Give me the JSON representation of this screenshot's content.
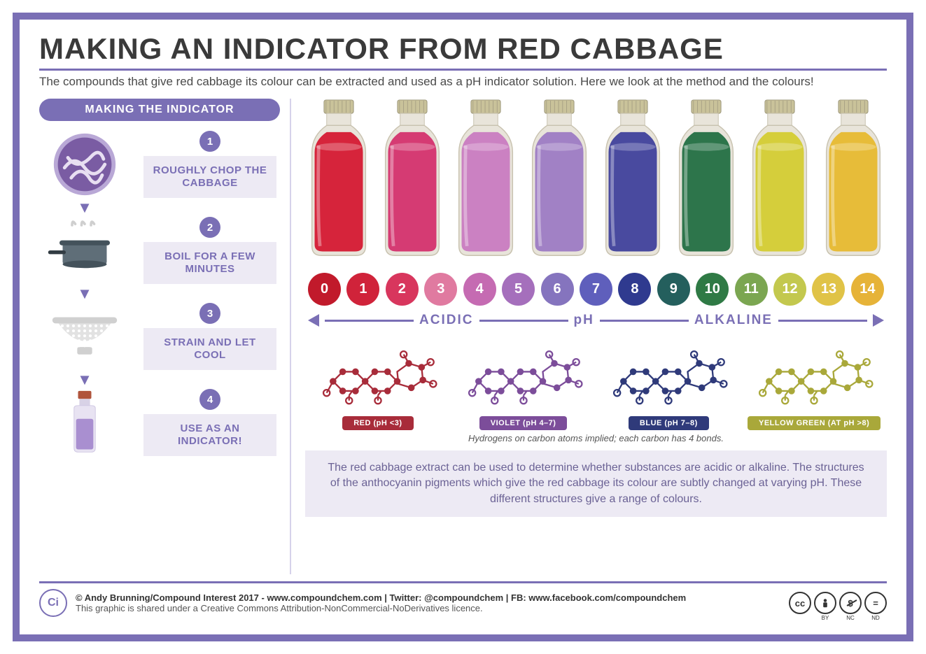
{
  "colors": {
    "accent": "#7a6fb5",
    "accent_light": "#edeaf4",
    "title_text": "#3a3a3a",
    "body_text": "#4a4a4a"
  },
  "title": "MAKING AN INDICATOR FROM RED CABBAGE",
  "subtitle": "The compounds that give red cabbage its colour can be extracted and used as a pH indicator solution. Here we look at the method and the colours!",
  "section_header": "MAKING THE INDICATOR",
  "steps": [
    {
      "num": "1",
      "label": "ROUGHLY CHOP THE CABBAGE",
      "icon": "cabbage"
    },
    {
      "num": "2",
      "label": "BOIL FOR A FEW MINUTES",
      "icon": "pot"
    },
    {
      "num": "3",
      "label": "STRAIN AND LET COOL",
      "icon": "strainer"
    },
    {
      "num": "4",
      "label": "USE AS AN INDICATOR!",
      "icon": "bottle"
    }
  ],
  "bottles": [
    {
      "liquid": "#d4132e"
    },
    {
      "liquid": "#d32d6a"
    },
    {
      "liquid": "#c878c0"
    },
    {
      "liquid": "#9a78c3"
    },
    {
      "liquid": "#3b3d9a"
    },
    {
      "liquid": "#1c6b3f"
    },
    {
      "liquid": "#d2cc2e"
    },
    {
      "liquid": "#e6b92b"
    }
  ],
  "bottle_cap_color": "#c9c29a",
  "bottle_glass_color": "#e8e4da",
  "ph_scale": [
    {
      "v": "0",
      "c": "#c11a2b"
    },
    {
      "v": "1",
      "c": "#d0233a"
    },
    {
      "v": "2",
      "c": "#d8365d"
    },
    {
      "v": "3",
      "c": "#e07aa0"
    },
    {
      "v": "4",
      "c": "#c56bb2"
    },
    {
      "v": "5",
      "c": "#a56fbc"
    },
    {
      "v": "6",
      "c": "#8574be"
    },
    {
      "v": "7",
      "c": "#5f5fbc"
    },
    {
      "v": "8",
      "c": "#2f3a8f"
    },
    {
      "v": "9",
      "c": "#245f5d"
    },
    {
      "v": "10",
      "c": "#2f7a45"
    },
    {
      "v": "11",
      "c": "#7ba651"
    },
    {
      "v": "12",
      "c": "#c3c84e"
    },
    {
      "v": "13",
      "c": "#e0c347"
    },
    {
      "v": "14",
      "c": "#e6b338"
    }
  ],
  "scale_labels": {
    "left": "ACIDIC",
    "mid": "pH",
    "right": "ALKALINE"
  },
  "molecules": [
    {
      "label": "RED (pH <3)",
      "color": "#a82c3a"
    },
    {
      "label": "VIOLET (pH 4–7)",
      "color": "#7c4d9a"
    },
    {
      "label": "BLUE (pH 7–8)",
      "color": "#2f3a7a"
    },
    {
      "label": "YELLOW GREEN (AT pH >8)",
      "color": "#a9a83a"
    }
  ],
  "molecule_caption": "Hydrogens on carbon atoms implied; each carbon has 4 bonds.",
  "explain": "The red cabbage extract can be used to determine whether substances are acidic or alkaline. The structures of the anthocyanin pigments which give the red cabbage its colour are subtly changed at varying pH. These different structures give a range of colours.",
  "footer": {
    "logo": "Ci",
    "line1": "© Andy Brunning/Compound Interest 2017 - www.compoundchem.com | Twitter: @compoundchem | FB: www.facebook.com/compoundchem",
    "line2": "This graphic is shared under a Creative Commons Attribution-NonCommercial-NoDerivatives licence.",
    "cc": [
      "cc",
      "BY",
      "NC",
      "ND"
    ]
  }
}
